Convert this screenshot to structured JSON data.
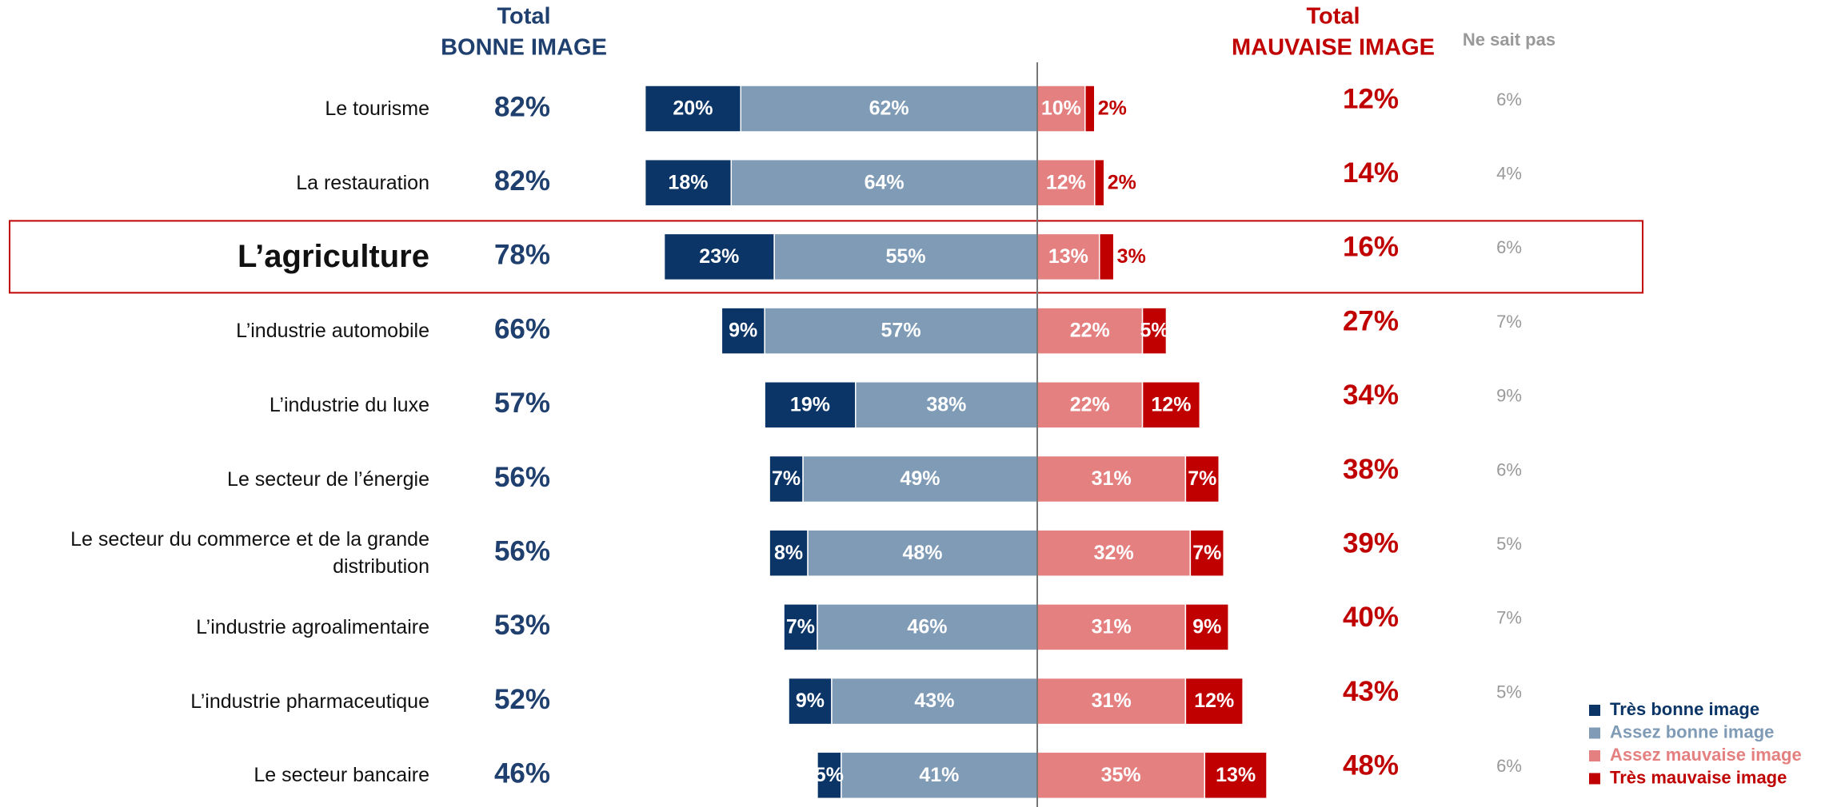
{
  "chart_data": {
    "type": "diverging-bar",
    "categories": [
      "Le tourisme",
      "La restauration",
      "L’agriculture",
      "L’industrie automobile",
      "L’industrie du luxe",
      "Le secteur de l’énergie",
      "Le secteur du commerce et de la grande distribution",
      "L’industrie agroalimentaire",
      "L’industrie pharmaceutique",
      "Le secteur bancaire"
    ],
    "highlight": 2,
    "series": [
      {
        "name": "Très bonne image",
        "color": "#0b3566",
        "side": "left",
        "values": [
          20,
          18,
          23,
          9,
          19,
          7,
          8,
          7,
          9,
          5
        ],
        "value_labels": [
          "20%",
          "18%",
          "23%",
          "9%",
          "19%",
          "7%",
          "8%",
          "7%",
          "9%",
          "5%"
        ]
      },
      {
        "name": "Assez bonne image",
        "color": "#7f9bb6",
        "side": "left",
        "values": [
          62,
          64,
          55,
          57,
          38,
          49,
          48,
          46,
          43,
          41
        ],
        "value_labels": [
          "62%",
          "64%",
          "55%",
          "57%",
          "38%",
          "49%",
          "48%",
          "46%",
          "43%",
          "41%"
        ]
      },
      {
        "name": "Assez mauvaise image",
        "color": "#e58080",
        "side": "right",
        "values": [
          10,
          12,
          13,
          22,
          22,
          31,
          32,
          31,
          31,
          35
        ],
        "value_labels": [
          "10%",
          "12%",
          "13%",
          "22%",
          "22%",
          "31%",
          "32%",
          "31%",
          "31%",
          "35%"
        ]
      },
      {
        "name": "Très mauvaise image",
        "color": "#c00000",
        "side": "right",
        "values": [
          2,
          2,
          3,
          5,
          12,
          7,
          7,
          9,
          12,
          13
        ],
        "value_labels": [
          "2%",
          "2%",
          "3%",
          "5%",
          "12%",
          "7%",
          "7%",
          "9%",
          "12%",
          "13%"
        ]
      }
    ],
    "total_good": {
      "header": [
        "Total",
        "BONNE IMAGE"
      ],
      "color": "#1f3f6e",
      "values": [
        82,
        82,
        78,
        66,
        57,
        56,
        56,
        53,
        52,
        46
      ],
      "value_labels": [
        "82%",
        "82%",
        "78%",
        "66%",
        "57%",
        "56%",
        "56%",
        "53%",
        "52%",
        "46%"
      ]
    },
    "total_bad": {
      "header": [
        "Total",
        "MAUVAISE IMAGE"
      ],
      "color": "#c00000",
      "values": [
        12,
        14,
        16,
        27,
        34,
        38,
        39,
        40,
        43,
        48
      ],
      "value_labels": [
        "12%",
        "14%",
        "16%",
        "27%",
        "34%",
        "38%",
        "39%",
        "40%",
        "43%",
        "48%"
      ]
    },
    "dont_know": {
      "header": "Ne sait pas",
      "color": "#999999",
      "values": [
        6,
        4,
        6,
        7,
        9,
        6,
        5,
        7,
        5,
        6
      ],
      "value_labels": [
        "6%",
        "4%",
        "6%",
        "7%",
        "9%",
        "6%",
        "5%",
        "7%",
        "5%",
        "6%"
      ]
    },
    "legend": "bottom-right"
  }
}
